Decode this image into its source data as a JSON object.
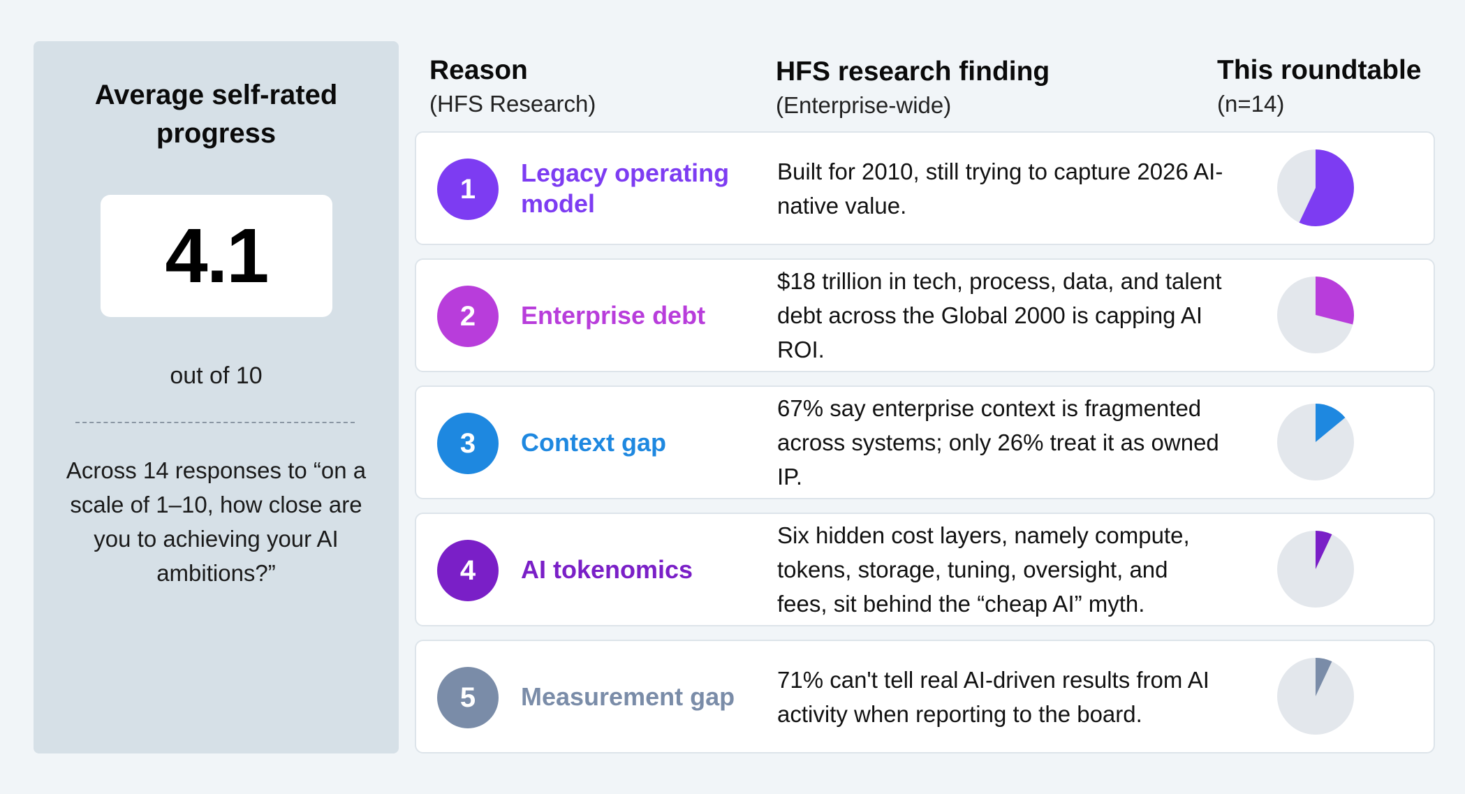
{
  "left_panel": {
    "title": "Average self-rated progress",
    "score": "4.1",
    "score_sub": "out of 10",
    "note": "Across 14 responses to “on a scale of 1–10, how close are you to achieving your AI ambitions?”"
  },
  "headers": {
    "reason_title": "Reason",
    "reason_sub": "(HFS Research)",
    "finding_title": "HFS research finding",
    "finding_sub": "(Enterprise-wide)",
    "round_title": "This roundtable",
    "round_sub": "(n=14)"
  },
  "pie_background": "#e3e7ec",
  "rows": [
    {
      "number": "1",
      "reason": "Legacy operating model",
      "finding": "Built for 2010, still trying to capture 2026 AI-native value.",
      "color": "#7d3cf2",
      "share": 0.57
    },
    {
      "number": "2",
      "reason": "Enterprise debt",
      "finding": "$18 trillion in tech, process, data, and talent debt across the Global 2000 is capping AI ROI.",
      "color": "#b83ddb",
      "share": 0.29
    },
    {
      "number": "3",
      "reason": "Context gap",
      "finding": "67% say enterprise context is fragmented across systems; only 26% treat it as owned IP.",
      "color": "#1e88e0",
      "share": 0.14
    },
    {
      "number": "4",
      "reason": "AI tokenomics",
      "finding": "Six hidden cost layers, namely compute, tokens, storage, tuning, oversight, and fees, sit behind the “cheap AI” myth.",
      "color": "#7a1fc7",
      "share": 0.07
    },
    {
      "number": "5",
      "reason": "Measurement gap",
      "finding": "71% can't tell real AI-driven results from AI activity when reporting to the board.",
      "color": "#7a8ca8",
      "share": 0.07
    }
  ]
}
